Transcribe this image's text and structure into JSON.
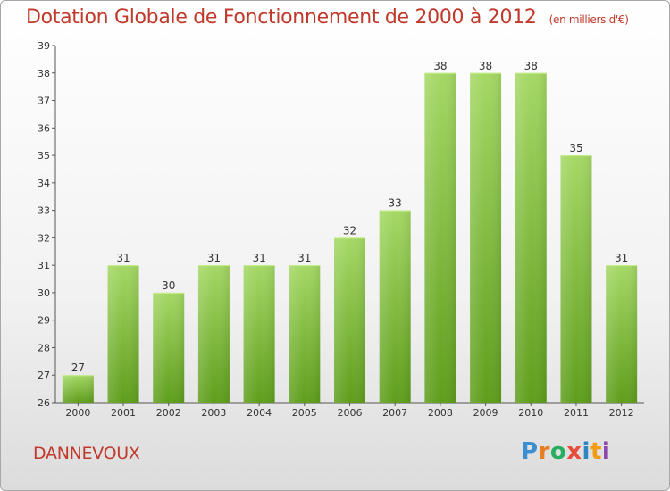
{
  "header": {
    "title": "Dotation Globale de Fonctionnement de 2000 à 2012",
    "unit": "(en milliers d'€)"
  },
  "footer": {
    "city": "DANNEVOUX",
    "brand": "Proxiti"
  },
  "colors": {
    "accent": "#c0392b",
    "bar_top": "#9fd35a",
    "bar_bottom": "#5e9e1c"
  },
  "chart_data": {
    "type": "bar",
    "title": "Dotation Globale de Fonctionnement de 2000 à 2012",
    "subtitle": "(en milliers d'€)",
    "categories": [
      "2000",
      "2001",
      "2002",
      "2003",
      "2004",
      "2005",
      "2006",
      "2007",
      "2008",
      "2009",
      "2010",
      "2011",
      "2012"
    ],
    "values": [
      27,
      31,
      30,
      31,
      31,
      31,
      32,
      33,
      38,
      38,
      38,
      35,
      31
    ],
    "ylim": [
      26,
      39
    ],
    "yticks": [
      26,
      27,
      28,
      29,
      30,
      31,
      32,
      33,
      34,
      35,
      36,
      37,
      38,
      39
    ],
    "grid": false,
    "legend": "none"
  }
}
